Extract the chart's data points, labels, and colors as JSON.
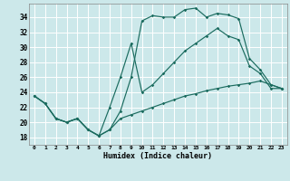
{
  "background_color": "#cce8ea",
  "grid_color": "#b8d8da",
  "line_color": "#1a6b5e",
  "xlim": [
    -0.5,
    23.5
  ],
  "ylim": [
    17.0,
    35.8
  ],
  "xticks": [
    0,
    1,
    2,
    3,
    4,
    5,
    6,
    7,
    8,
    9,
    10,
    11,
    12,
    13,
    14,
    15,
    16,
    17,
    18,
    19,
    20,
    21,
    22,
    23
  ],
  "yticks": [
    18,
    20,
    22,
    24,
    26,
    28,
    30,
    32,
    34
  ],
  "xlabel": "Humidex (Indice chaleur)",
  "line1_x": [
    0,
    1,
    2,
    3,
    4,
    5,
    6,
    7,
    8,
    9,
    10,
    11,
    12,
    13,
    14,
    15,
    16,
    17,
    18,
    19,
    20,
    21,
    22,
    23
  ],
  "line1_y": [
    23.5,
    22.5,
    20.5,
    20.0,
    20.5,
    19.0,
    18.2,
    19.0,
    21.5,
    26.0,
    33.5,
    34.2,
    34.0,
    34.0,
    35.0,
    35.2,
    34.0,
    34.5,
    34.3,
    33.8,
    28.5,
    27.0,
    25.0,
    24.5
  ],
  "line2_x": [
    0,
    1,
    2,
    3,
    4,
    5,
    6,
    7,
    8,
    9,
    10,
    11,
    12,
    13,
    14,
    15,
    16,
    17,
    18,
    19,
    20,
    21,
    22,
    23
  ],
  "line2_y": [
    23.5,
    22.5,
    20.5,
    20.0,
    20.5,
    19.0,
    18.2,
    22.0,
    26.0,
    30.5,
    24.0,
    25.0,
    26.5,
    28.0,
    29.5,
    30.5,
    31.5,
    32.5,
    31.5,
    31.0,
    27.5,
    26.5,
    24.5,
    24.5
  ],
  "line3_x": [
    0,
    1,
    2,
    3,
    4,
    5,
    6,
    7,
    8,
    9,
    10,
    11,
    12,
    13,
    14,
    15,
    16,
    17,
    18,
    19,
    20,
    21,
    22,
    23
  ],
  "line3_y": [
    23.5,
    22.5,
    20.5,
    20.0,
    20.5,
    19.0,
    18.2,
    19.0,
    20.5,
    21.0,
    21.5,
    22.0,
    22.5,
    23.0,
    23.5,
    23.8,
    24.2,
    24.5,
    24.8,
    25.0,
    25.2,
    25.5,
    25.0,
    24.5
  ]
}
